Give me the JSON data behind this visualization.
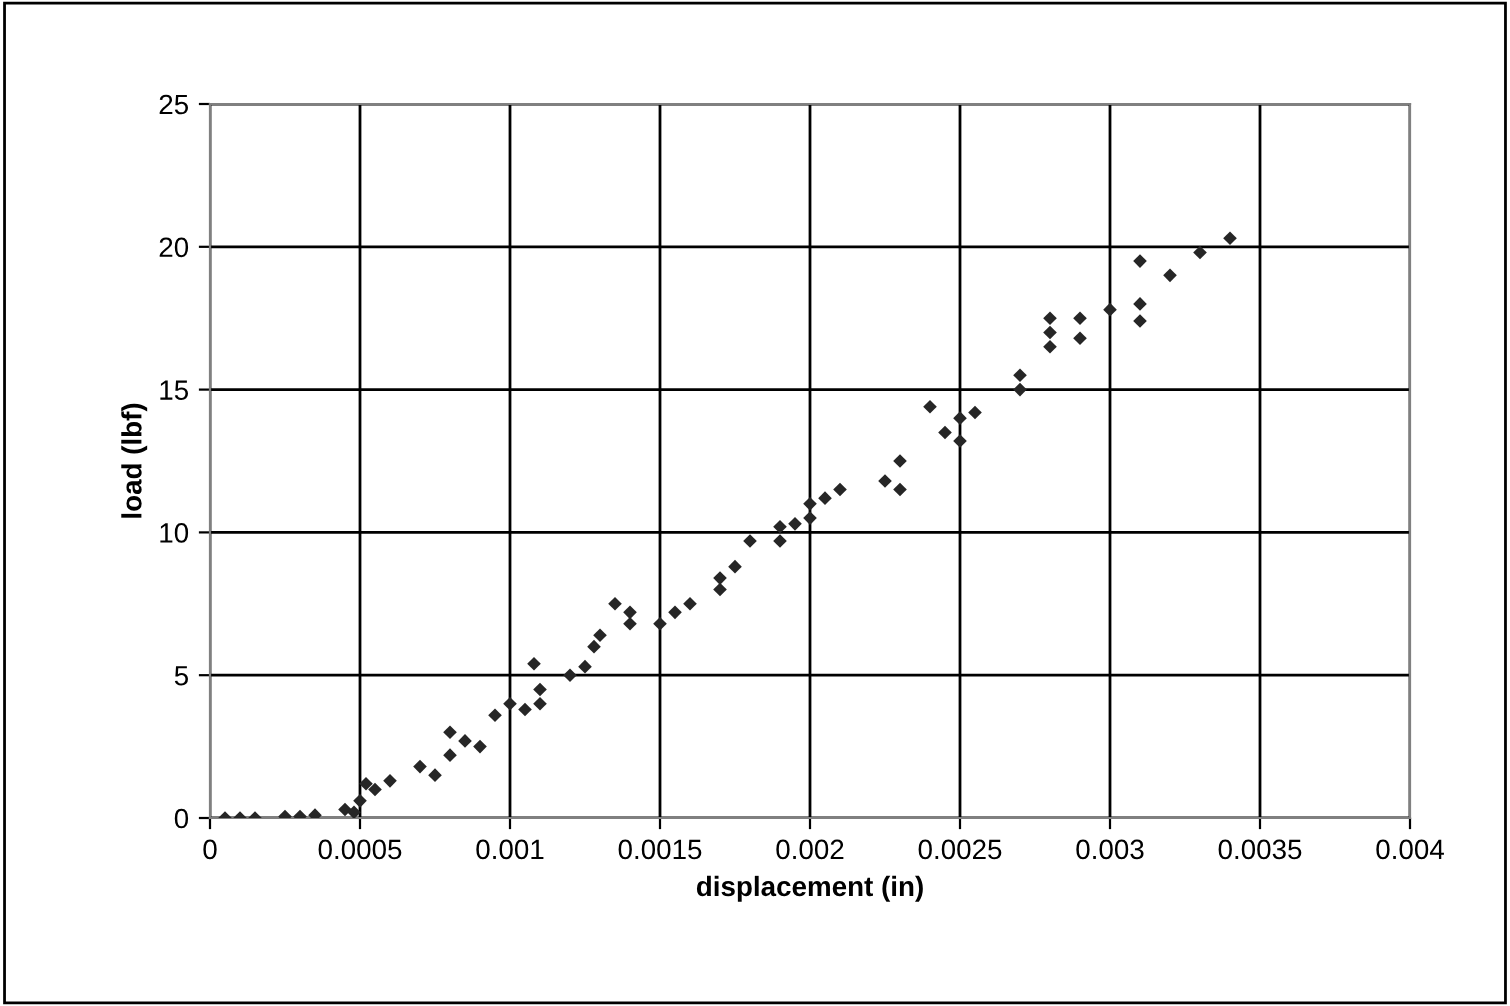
{
  "chart_data": {
    "type": "scatter",
    "xlabel": "displacement (in)",
    "ylabel": "load (lbf)",
    "xlim": [
      0,
      0.004
    ],
    "xticks": [
      0,
      0.0005,
      0.001,
      0.0015,
      0.002,
      0.0025,
      0.003,
      0.0035,
      0.004
    ],
    "ylim": [
      0,
      25
    ],
    "yticks": [
      0,
      5,
      10,
      15,
      20,
      25
    ],
    "grid": true,
    "marker": "diamond",
    "series": [
      {
        "color": "#262626",
        "x": [
          5e-05,
          0.0001,
          0.00015,
          0.00025,
          0.0003,
          0.00035,
          0.00045,
          0.00048,
          0.0005,
          0.00052,
          0.00055,
          0.0006,
          0.0007,
          0.00075,
          0.0008,
          0.0008,
          0.00085,
          0.0009,
          0.00095,
          0.001,
          0.00105,
          0.00108,
          0.0011,
          0.0011,
          0.0012,
          0.00125,
          0.00128,
          0.0013,
          0.00135,
          0.0014,
          0.0014,
          0.0015,
          0.00155,
          0.0016,
          0.0017,
          0.0017,
          0.00175,
          0.0018,
          0.0019,
          0.00195,
          0.0019,
          0.002,
          0.002,
          0.00205,
          0.0021,
          0.00225,
          0.0023,
          0.0023,
          0.0024,
          0.00245,
          0.0025,
          0.0025,
          0.00255,
          0.0027,
          0.0027,
          0.0028,
          0.0028,
          0.0028,
          0.0029,
          0.0029,
          0.003,
          0.0031,
          0.0031,
          0.0031,
          0.0032,
          0.0033,
          0.0034
        ],
        "values": [
          0,
          0,
          0,
          0.05,
          0.05,
          0.1,
          0.3,
          0.2,
          0.6,
          1.2,
          1.0,
          1.3,
          1.8,
          1.5,
          2.2,
          3.0,
          2.7,
          2.5,
          3.6,
          4.0,
          3.8,
          5.4,
          4.5,
          4.0,
          5.0,
          5.3,
          6.0,
          6.4,
          7.5,
          6.8,
          7.2,
          6.8,
          7.2,
          7.5,
          8.0,
          8.4,
          8.8,
          9.7,
          10.2,
          10.3,
          9.7,
          10.5,
          11.0,
          11.2,
          11.5,
          11.8,
          12.5,
          11.5,
          14.4,
          13.5,
          13.2,
          14.0,
          14.2,
          15.0,
          15.5,
          17.5,
          16.5,
          17.0,
          17.5,
          16.8,
          17.8,
          17.4,
          18.0,
          19.5,
          19.0,
          19.8,
          20.3
        ]
      }
    ]
  }
}
